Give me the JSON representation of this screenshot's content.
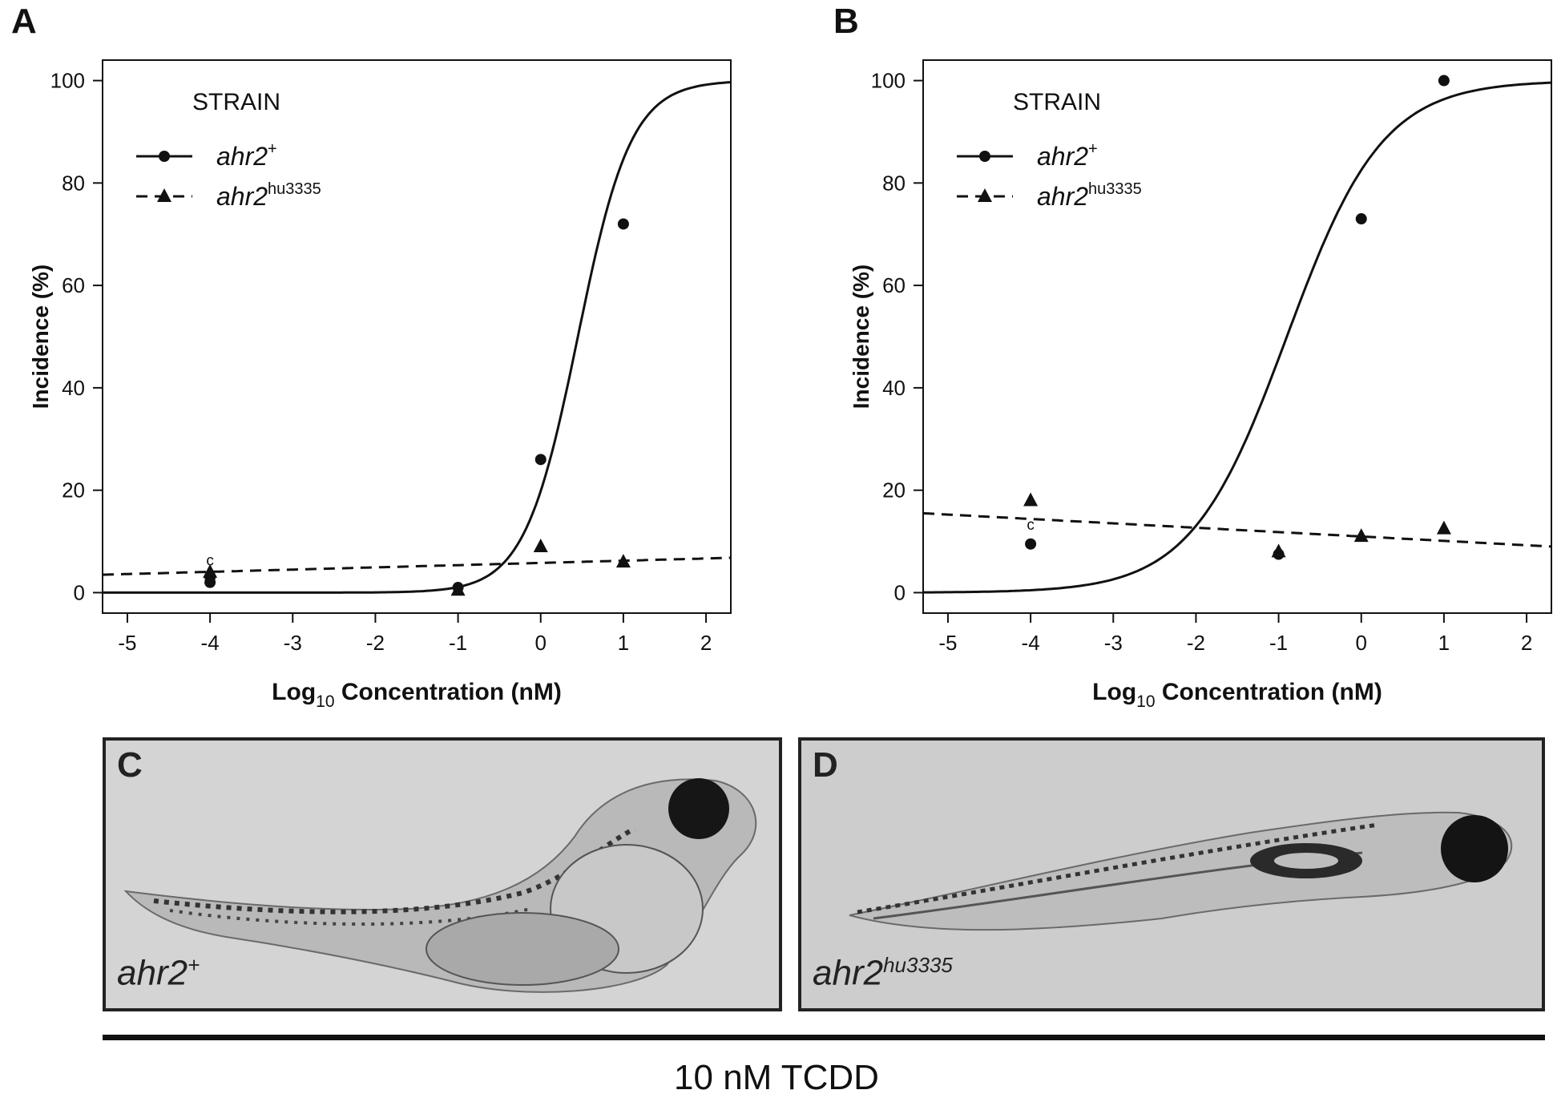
{
  "panels": {
    "A": "A",
    "B": "B",
    "C": "C",
    "D": "D"
  },
  "legend": {
    "title": "STRAIN",
    "wt_base": "ahr2",
    "wt_sup": "+",
    "mut_base": "ahr2",
    "mut_sup": "hu3335"
  },
  "axes": {
    "ylabel": "Incidence (%)",
    "xlabel_pre": "Log",
    "xlabel_sub": "10",
    "xlabel_post": " Concentration (nM)"
  },
  "annotations": {
    "control_marker": "c"
  },
  "chart_data": [
    {
      "panel": "A",
      "type": "scatter",
      "xlim": [
        -5.3,
        2.3
      ],
      "ylim": [
        -4,
        104
      ],
      "xticks": [
        -5,
        -4,
        -3,
        -2,
        -1,
        0,
        1,
        2
      ],
      "yticks": [
        0,
        20,
        40,
        60,
        80,
        100
      ],
      "series": [
        {
          "name": "ahr2+",
          "marker": "circle",
          "line": "solid",
          "points": [
            [
              -4,
              2
            ],
            [
              -4,
              3
            ],
            [
              -1,
              1
            ],
            [
              0,
              26
            ],
            [
              1,
              72
            ]
          ],
          "fit": {
            "model": "logistic",
            "x50": 0.45,
            "slope": 1.35,
            "min": 0,
            "max": 100
          }
        },
        {
          "name": "ahr2hu3335",
          "marker": "triangle",
          "line": "dashed",
          "points": [
            [
              -4,
              4
            ],
            [
              -1,
              0.5
            ],
            [
              0,
              9
            ],
            [
              1,
              6
            ]
          ],
          "fit": {
            "model": "linear",
            "y_at_xmin": 3.5,
            "y_at_xmax": 6.8
          }
        }
      ]
    },
    {
      "panel": "B",
      "type": "scatter",
      "xlim": [
        -5.3,
        2.3
      ],
      "ylim": [
        -4,
        104
      ],
      "xticks": [
        -5,
        -4,
        -3,
        -2,
        -1,
        0,
        1,
        2
      ],
      "yticks": [
        0,
        20,
        40,
        60,
        80,
        100
      ],
      "series": [
        {
          "name": "ahr2+",
          "marker": "circle",
          "line": "solid",
          "points": [
            [
              -4,
              9.5
            ],
            [
              -1,
              7.5
            ],
            [
              0,
              73
            ],
            [
              1,
              100
            ]
          ],
          "fit": {
            "model": "logistic",
            "x50": -0.9,
            "slope": 0.75,
            "min": 0,
            "max": 100
          }
        },
        {
          "name": "ahr2hu3335",
          "marker": "triangle",
          "line": "dashed",
          "points": [
            [
              -4,
              18
            ],
            [
              -1,
              8
            ],
            [
              0,
              11
            ],
            [
              1,
              12.5
            ]
          ],
          "fit": {
            "model": "linear",
            "y_at_xmin": 15.5,
            "y_at_xmax": 9
          }
        }
      ]
    }
  ],
  "images": [
    {
      "panel": "C",
      "genotype_base": "ahr2",
      "genotype_sup": "+",
      "bg": "#d6d6d6"
    },
    {
      "panel": "D",
      "genotype_base": "ahr2",
      "genotype_sup": "hu3335",
      "bg": "#cfcfcf"
    }
  ],
  "caption": "10 nM TCDD"
}
